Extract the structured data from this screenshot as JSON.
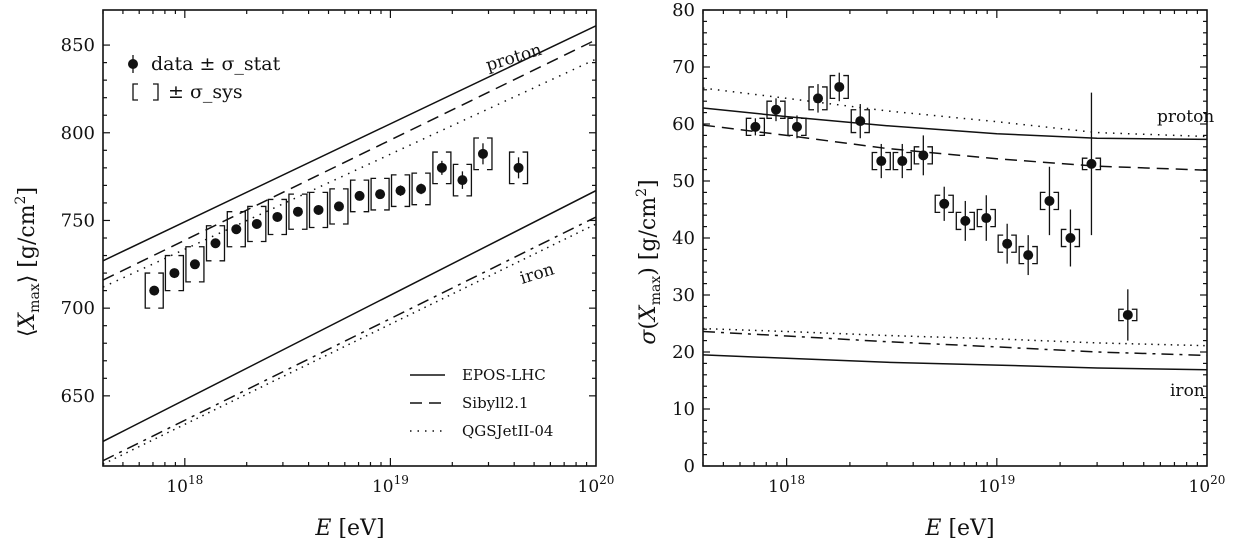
{
  "chart_data": [
    {
      "type": "scatter",
      "xscale": "log",
      "xlim": [
        4e+17,
        1e+20
      ],
      "ylim": [
        610,
        870
      ],
      "xlabel": "E [eV]",
      "ylabel": "⟨Xmax⟩ [g/cm²]",
      "x_ticks": [
        "1e18",
        "1e19",
        "1e20"
      ],
      "x_tick_labels": [
        {
          "base": "10",
          "exp": "18"
        },
        {
          "base": "10",
          "exp": "19"
        },
        {
          "base": "10",
          "exp": "20"
        }
      ],
      "y_ticks": [
        650,
        700,
        750,
        800,
        850
      ],
      "y_tick_labels": [
        "650",
        "700",
        "750",
        "800",
        "850"
      ],
      "legend_position": "bottom-right",
      "data_legend_position": "top-left",
      "data_legend": {
        "points": "data ± σ_stat",
        "sys": "± σ_sys"
      },
      "models": [
        {
          "name": "EPOS-LHC",
          "style": "solid"
        },
        {
          "name": "Sibyll2.1",
          "style": "dashed"
        },
        {
          "name": "QGSJetII-04",
          "style": "dotted"
        }
      ],
      "curve_labels": {
        "proton": "proton",
        "iron": "iron"
      },
      "data": {
        "x": [
          7.1e+17,
          8.9e+17,
          1.12e+18,
          1.41e+18,
          1.78e+18,
          2.24e+18,
          2.82e+18,
          3.55e+18,
          4.47e+18,
          5.62e+18,
          7.08e+18,
          8.91e+18,
          1.12e+19,
          1.41e+19,
          1.78e+19,
          2.24e+19,
          2.82e+19,
          4.2e+19
        ],
        "y": [
          710,
          720,
          725,
          737,
          745,
          748,
          752,
          755,
          756,
          758,
          764,
          765,
          767,
          768,
          780,
          773,
          788,
          780
        ],
        "stat": [
          2,
          2,
          2,
          2,
          2,
          2,
          2,
          2,
          2,
          2,
          2,
          2,
          3,
          3,
          4,
          5,
          6,
          6
        ],
        "sys": [
          10,
          10,
          10,
          10,
          10,
          10,
          10,
          10,
          10,
          10,
          9,
          9,
          9,
          9,
          9,
          9,
          9,
          9
        ]
      },
      "curves": [
        {
          "model": "EPOS-LHC",
          "primary": "proton",
          "x": [
            4e+17,
            1e+20
          ],
          "y": [
            727,
            861
          ]
        },
        {
          "model": "Sibyll2.1",
          "primary": "proton",
          "x": [
            4e+17,
            1e+20
          ],
          "y": [
            716,
            853
          ]
        },
        {
          "model": "QGSJetII-04",
          "primary": "proton",
          "x": [
            4e+17,
            1e+20
          ],
          "y": [
            712,
            842
          ]
        },
        {
          "model": "EPOS-LHC",
          "primary": "iron",
          "x": [
            4e+17,
            1e+20
          ],
          "y": [
            624,
            767
          ]
        },
        {
          "model": "Sibyll2.1",
          "primary": "iron",
          "x": [
            4e+17,
            1e+20
          ],
          "y": [
            613,
            752
          ]
        },
        {
          "model": "QGSJetII-04",
          "primary": "iron",
          "x": [
            4e+17,
            1e+20
          ],
          "y": [
            611,
            748
          ]
        }
      ]
    },
    {
      "type": "scatter",
      "xscale": "log",
      "xlim": [
        4e+17,
        1e+20
      ],
      "ylim": [
        0,
        80
      ],
      "xlabel": "E [eV]",
      "ylabel": "σ(Xmax) [g/cm²]",
      "x_ticks": [
        "1e18",
        "1e19",
        "1e20"
      ],
      "x_tick_labels": [
        {
          "base": "10",
          "exp": "18"
        },
        {
          "base": "10",
          "exp": "19"
        },
        {
          "base": "10",
          "exp": "20"
        }
      ],
      "y_ticks": [
        0,
        10,
        20,
        30,
        40,
        50,
        60,
        70,
        80
      ],
      "y_tick_labels": [
        "0",
        "10",
        "20",
        "30",
        "40",
        "50",
        "60",
        "70",
        "80"
      ],
      "curve_labels": {
        "proton": "proton",
        "iron": "iron"
      },
      "data": {
        "x": [
          7.1e+17,
          8.9e+17,
          1.12e+18,
          1.41e+18,
          1.78e+18,
          2.24e+18,
          2.82e+18,
          3.55e+18,
          4.47e+18,
          5.62e+18,
          7.08e+18,
          8.91e+18,
          1.12e+19,
          1.41e+19,
          1.78e+19,
          2.24e+19,
          2.82e+19,
          4.2e+19
        ],
        "y": [
          59.5,
          62.5,
          59.5,
          64.5,
          66.5,
          60.5,
          53.5,
          53.5,
          54.5,
          46,
          43,
          43.5,
          39,
          37,
          46.5,
          40,
          53,
          26.5
        ],
        "stat": [
          1.5,
          2,
          2,
          2.5,
          2.5,
          3,
          3,
          3,
          3.5,
          3,
          3.5,
          4,
          3.5,
          3.5,
          6,
          5,
          12.5,
          4.5
        ],
        "sys": [
          1.5,
          1.5,
          1.5,
          2,
          2,
          2,
          1.5,
          1.5,
          1.5,
          1.5,
          1.5,
          1.5,
          1.5,
          1.5,
          1.5,
          1.5,
          1,
          1
        ]
      },
      "curves": [
        {
          "model": "EPOS-LHC",
          "primary": "proton",
          "x": [
            4e+17,
            1e+18,
            3e+18,
            1e+19,
            3e+19,
            1e+20
          ],
          "y": [
            62.8,
            61.3,
            59.7,
            58.3,
            57.5,
            57.3
          ]
        },
        {
          "model": "Sibyll2.1",
          "primary": "proton",
          "x": [
            4e+17,
            1e+18,
            3e+18,
            1e+19,
            3e+19,
            1e+20
          ],
          "y": [
            59.8,
            58.0,
            55.7,
            53.9,
            52.6,
            51.9
          ]
        },
        {
          "model": "QGSJetII-04",
          "primary": "proton",
          "x": [
            4e+17,
            1e+18,
            3e+18,
            1e+19,
            3e+19,
            1e+20
          ],
          "y": [
            66.3,
            64.5,
            62.3,
            60.4,
            58.5,
            57.8
          ]
        },
        {
          "model": "EPOS-LHC",
          "primary": "iron",
          "x": [
            4e+17,
            1e+18,
            3e+18,
            1e+19,
            3e+19,
            1e+20
          ],
          "y": [
            19.5,
            18.9,
            18.2,
            17.7,
            17.2,
            16.9
          ]
        },
        {
          "model": "Sibyll2.1",
          "primary": "iron",
          "x": [
            4e+17,
            1e+18,
            3e+18,
            1e+19,
            3e+19,
            1e+20
          ],
          "y": [
            23.6,
            22.8,
            21.8,
            20.9,
            20.0,
            19.4
          ]
        },
        {
          "model": "QGSJetII-04",
          "primary": "iron",
          "x": [
            4e+17,
            1e+18,
            3e+18,
            1e+19,
            3e+19,
            1e+20
          ],
          "y": [
            24.1,
            23.6,
            22.9,
            22.3,
            21.6,
            21.1
          ]
        }
      ]
    }
  ]
}
